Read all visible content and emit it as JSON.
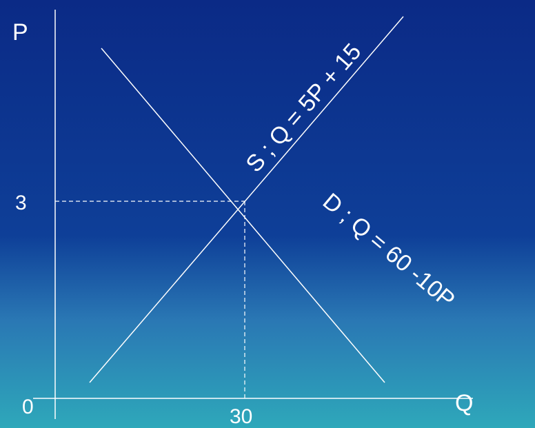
{
  "axes": {
    "y_label": "P",
    "x_label": "Q",
    "origin": "0",
    "y_value": "3",
    "x_value": "30"
  },
  "curves": {
    "supply": "S ; Q = 5P + 15",
    "demand": "D ; Q = 60 -10P"
  }
}
